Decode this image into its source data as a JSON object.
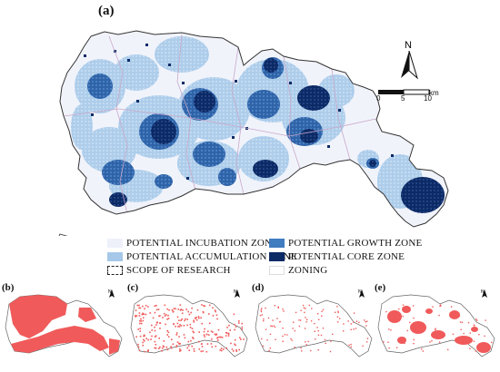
{
  "figure": {
    "panel_a_label": "(a)",
    "panel_b_label": "(b)",
    "panel_c_label": "(c)",
    "panel_d_label": "(d)",
    "panel_e_label": "(e)"
  },
  "north_arrow": {
    "letter": "N",
    "small_letter": "N"
  },
  "scale_bar": {
    "tick_0": "0",
    "tick_5": "5",
    "tick_10": "10",
    "unit": "km"
  },
  "legend": {
    "incubation": {
      "label": "POTENTIAL INCUBATION ZONE",
      "color": "#eef1fa"
    },
    "growth": {
      "label": "POTENTIAL GROWTH ZONE",
      "color": "#3f7cc0"
    },
    "accumulation": {
      "label": "POTENTIAL ACCUMULATION ZONE",
      "color": "#a6c8e8"
    },
    "core": {
      "label": "POTENTIAL CORE ZONE",
      "color": "#0c2a66"
    },
    "scope": {
      "label": "SCOPE OF RESEARCH"
    },
    "zoning": {
      "label": "ZONING"
    }
  },
  "colors": {
    "map_base": "#f1f3fb",
    "outline": "#333333",
    "zoning_line": "#c8a8c8",
    "red": "#f05a5a"
  }
}
